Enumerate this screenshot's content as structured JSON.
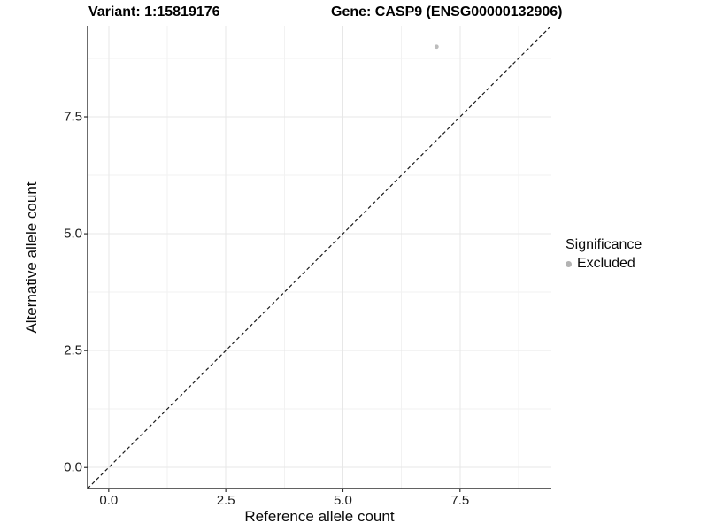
{
  "header": {
    "variant_title": "Variant: 1:15819176",
    "gene_title": "Gene: CASP9 (ENSG00000132906)"
  },
  "chart_data": {
    "type": "scatter",
    "title_left": "Variant: 1:15819176",
    "title_right": "Gene: CASP9 (ENSG00000132906)",
    "xlabel": "Reference allele count",
    "ylabel": "Alternative allele count",
    "xlim": [
      -0.45,
      9.45
    ],
    "ylim": [
      -0.45,
      9.45
    ],
    "x_ticks": [
      0,
      2.5,
      5,
      7.5
    ],
    "x_tick_labels": [
      "0.0",
      "2.5",
      "5.0",
      "7.5"
    ],
    "y_ticks": [
      0,
      2.5,
      5,
      7.5
    ],
    "y_tick_labels": [
      "0.0",
      "2.5",
      "5.0",
      "7.5"
    ],
    "x_minor_ticks": [
      1.25,
      3.75,
      6.25,
      8.75
    ],
    "y_minor_ticks": [
      1.25,
      3.75,
      6.25,
      8.75
    ],
    "grid": "major+minor",
    "reference_line": {
      "slope": 1,
      "intercept": 0,
      "style": "dashed",
      "color": "#1a1a1a"
    },
    "series": [
      {
        "name": "Excluded",
        "marker": "circle",
        "color": "#bcbcbc",
        "points": [
          {
            "x": 7,
            "y": 9
          }
        ]
      }
    ],
    "legend": {
      "title": "Significance",
      "position": "right",
      "entries": [
        {
          "label": "Excluded",
          "marker": "circle",
          "color": "#b3b3b3"
        }
      ]
    },
    "colors": {
      "background": "#ffffff",
      "grid_major": "#e7e7e7",
      "grid_minor": "#f2f2f2",
      "axis_line": "#2e2e2e",
      "tick_mark": "#2e2e2e",
      "tick_text": "#1c1c1c",
      "point": "#bcbcbc"
    }
  }
}
